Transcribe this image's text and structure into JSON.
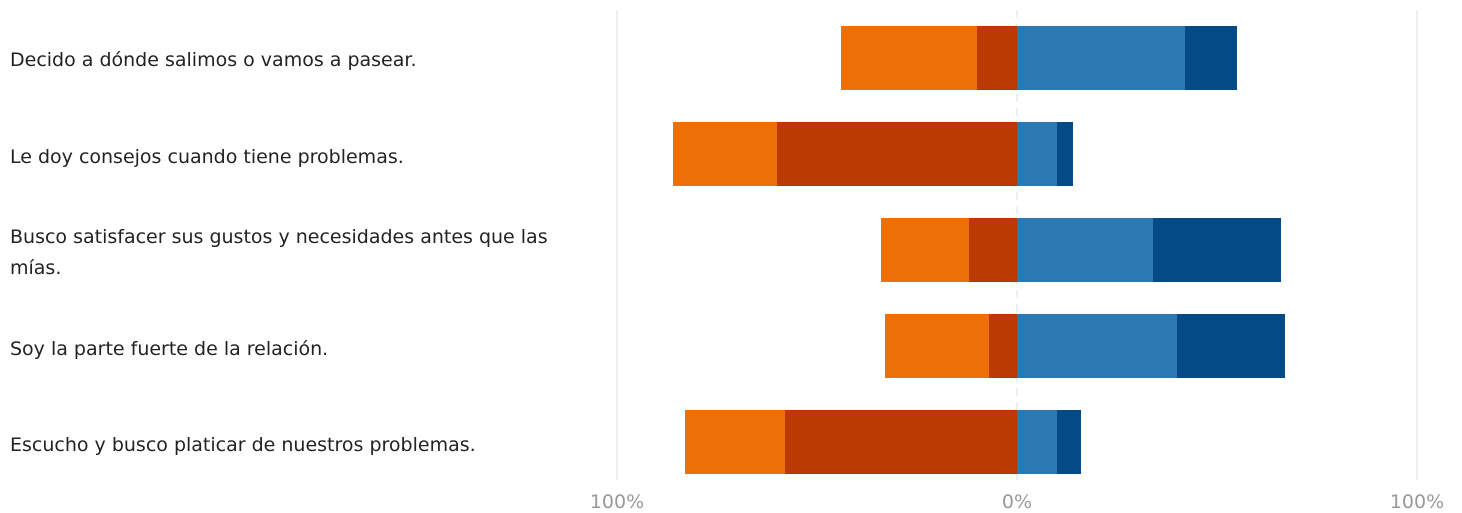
{
  "chart_data": {
    "type": "bar",
    "orientation": "horizontal",
    "stacked": "diverging",
    "categories": [
      "Decido a dónde salimos o vamos a pasear.",
      "Le doy consejos cuando tiene problemas.",
      "Busco satisfacer sus gustos y necesidades antes que las mías.",
      "Soy la parte fuerte de la relación.",
      "Escucho y busco platicar de nuestros problemas."
    ],
    "series": [
      {
        "side": "negative",
        "color": "#BA3A02",
        "values": [
          10,
          60,
          12,
          7,
          58
        ]
      },
      {
        "side": "negative",
        "color": "#EC7007",
        "values": [
          34,
          26,
          22,
          26,
          25
        ]
      },
      {
        "side": "positive",
        "color": "#2B79B3",
        "values": [
          42,
          10,
          34,
          40,
          10
        ]
      },
      {
        "side": "positive",
        "color": "#044A87",
        "values": [
          13,
          4,
          32,
          27,
          6
        ]
      }
    ],
    "xlim": [
      -100,
      100
    ],
    "x_tick_labels": [
      "100%",
      "0%",
      "100%"
    ],
    "grid": true
  }
}
